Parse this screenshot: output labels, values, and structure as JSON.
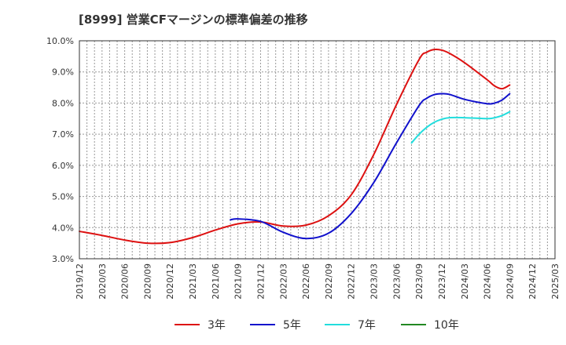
{
  "chart_data": {
    "type": "line",
    "title": "[8999]  営業CFマージンの標準偏差の推移",
    "xlabel": "",
    "ylabel": "",
    "ylim": [
      3.0,
      10.0
    ],
    "grid": true,
    "legend_position": "bottom",
    "x_ticks": [
      "2019/12",
      "2020/03",
      "2020/06",
      "2020/09",
      "2020/12",
      "2021/03",
      "2021/06",
      "2021/09",
      "2021/12",
      "2022/03",
      "2022/06",
      "2022/09",
      "2022/12",
      "2023/03",
      "2023/06",
      "2023/09",
      "2023/12",
      "2024/03",
      "2024/06",
      "2024/09",
      "2024/12",
      "2025/03"
    ],
    "y_ticks": [
      "3.0%",
      "4.0%",
      "5.0%",
      "6.0%",
      "7.0%",
      "8.0%",
      "9.0%",
      "10.0%"
    ],
    "series": [
      {
        "name": "3年",
        "color": "#dd1111",
        "points": [
          [
            "2019/12",
            3.88
          ],
          [
            "2020/03",
            3.75
          ],
          [
            "2020/06",
            3.6
          ],
          [
            "2020/09",
            3.5
          ],
          [
            "2020/12",
            3.52
          ],
          [
            "2021/03",
            3.68
          ],
          [
            "2021/06",
            3.92
          ],
          [
            "2021/09",
            4.12
          ],
          [
            "2021/12",
            4.18
          ],
          [
            "2022/03",
            4.05
          ],
          [
            "2022/06",
            4.08
          ],
          [
            "2022/09",
            4.38
          ],
          [
            "2022/12",
            5.05
          ],
          [
            "2023/03",
            6.35
          ],
          [
            "2023/06",
            7.95
          ],
          [
            "2023/09",
            9.4
          ],
          [
            "2023/10",
            9.63
          ],
          [
            "2023/11",
            9.72
          ],
          [
            "2023/12",
            9.7
          ],
          [
            "2024/01",
            9.6
          ],
          [
            "2024/03",
            9.3
          ],
          [
            "2024/06",
            8.75
          ],
          [
            "2024/07",
            8.55
          ],
          [
            "2024/08",
            8.46
          ],
          [
            "2024/09",
            8.58
          ]
        ]
      },
      {
        "name": "5年",
        "color": "#1111cc",
        "points": [
          [
            "2021/08",
            4.25
          ],
          [
            "2021/09",
            4.28
          ],
          [
            "2021/12",
            4.2
          ],
          [
            "2022/03",
            3.85
          ],
          [
            "2022/06",
            3.65
          ],
          [
            "2022/09",
            3.82
          ],
          [
            "2022/12",
            4.45
          ],
          [
            "2023/03",
            5.45
          ],
          [
            "2023/06",
            6.72
          ],
          [
            "2023/09",
            7.92
          ],
          [
            "2023/10",
            8.15
          ],
          [
            "2023/11",
            8.27
          ],
          [
            "2023/12",
            8.3
          ],
          [
            "2024/01",
            8.28
          ],
          [
            "2024/03",
            8.12
          ],
          [
            "2024/06",
            7.98
          ],
          [
            "2024/07",
            8.0
          ],
          [
            "2024/08",
            8.1
          ],
          [
            "2024/09",
            8.3
          ]
        ]
      },
      {
        "name": "7年",
        "color": "#22dddd",
        "points": [
          [
            "2023/08",
            6.72
          ],
          [
            "2023/09",
            7.0
          ],
          [
            "2023/10",
            7.22
          ],
          [
            "2023/11",
            7.38
          ],
          [
            "2023/12",
            7.48
          ],
          [
            "2024/01",
            7.53
          ],
          [
            "2024/03",
            7.53
          ],
          [
            "2024/06",
            7.5
          ],
          [
            "2024/07",
            7.53
          ],
          [
            "2024/08",
            7.6
          ],
          [
            "2024/09",
            7.72
          ]
        ]
      },
      {
        "name": "10年",
        "color": "#228822",
        "points": []
      }
    ]
  }
}
